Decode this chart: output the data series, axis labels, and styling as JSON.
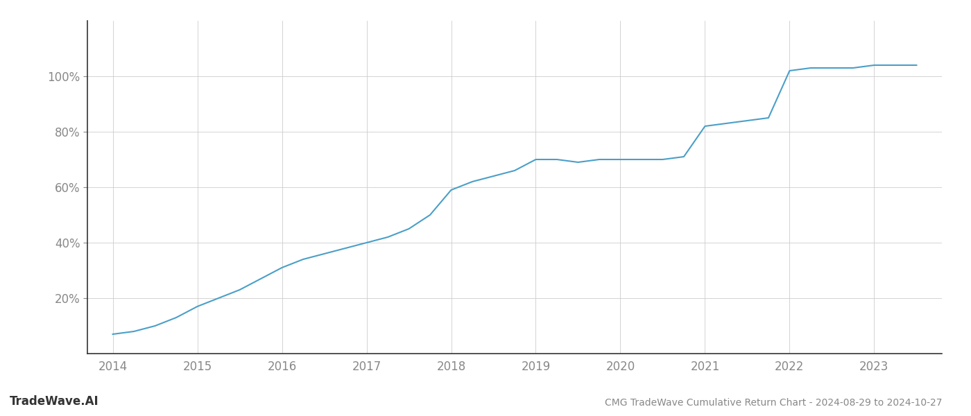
{
  "title": "CMG TradeWave Cumulative Return Chart - 2024-08-29 to 2024-10-27",
  "watermark": "TradeWave.AI",
  "line_color": "#4a9fc8",
  "background_color": "#ffffff",
  "grid_color": "#cccccc",
  "x_values": [
    2014.0,
    2014.25,
    2014.5,
    2014.75,
    2015.0,
    2015.25,
    2015.5,
    2015.75,
    2016.0,
    2016.25,
    2016.5,
    2016.75,
    2017.0,
    2017.25,
    2017.5,
    2017.75,
    2018.0,
    2018.25,
    2018.5,
    2018.75,
    2019.0,
    2019.25,
    2019.5,
    2019.75,
    2020.0,
    2020.25,
    2020.5,
    2020.75,
    2021.0,
    2021.25,
    2021.5,
    2021.75,
    2022.0,
    2022.25,
    2022.5,
    2022.75,
    2023.0,
    2023.5
  ],
  "y_values": [
    7,
    8,
    10,
    13,
    17,
    20,
    23,
    27,
    31,
    34,
    36,
    38,
    40,
    42,
    45,
    50,
    59,
    62,
    64,
    66,
    70,
    70,
    69,
    70,
    70,
    70,
    70,
    71,
    82,
    83,
    84,
    85,
    102,
    103,
    103,
    103,
    104,
    104
  ],
  "xlim": [
    2013.7,
    2023.8
  ],
  "ylim": [
    0,
    120
  ],
  "yticks": [
    20,
    40,
    60,
    80,
    100
  ],
  "xticks": [
    2014,
    2015,
    2016,
    2017,
    2018,
    2019,
    2020,
    2021,
    2022,
    2023
  ],
  "line_width": 1.5,
  "title_fontsize": 10,
  "tick_fontsize": 12,
  "watermark_fontsize": 12,
  "axis_color": "#555555",
  "tick_color": "#888888",
  "spine_color": "#333333"
}
